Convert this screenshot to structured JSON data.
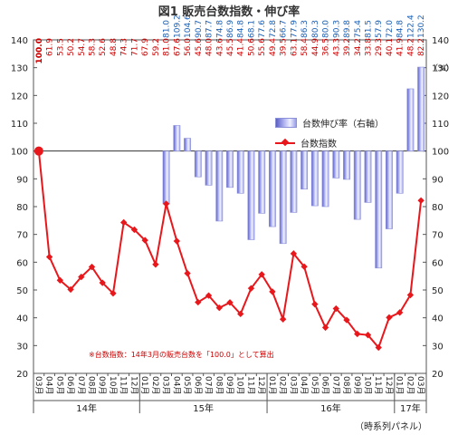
{
  "title": "図1  販売台数指数・伸び率",
  "note": "※台数指数：14年3月の販売台数を「100.0」として算出",
  "pct_unit": "（%）",
  "x_note": "（時系列パネル）",
  "legend": {
    "bar_label": "台数伸び率（右軸）",
    "line_label": "台数指数"
  },
  "colors": {
    "line": "#e8171c",
    "bar": "#9a9ee8",
    "growth_neg": "#cc0000",
    "growth_pos": "#1a5fb4"
  },
  "chart_data": {
    "type": "bar+line",
    "categories": [
      "03月",
      "04月",
      "05月",
      "06月",
      "07月",
      "08月",
      "09月",
      "10月",
      "11月",
      "12月",
      "01月",
      "02月",
      "03月",
      "04月",
      "05月",
      "06月",
      "07月",
      "08月",
      "09月",
      "10月",
      "11月",
      "12月",
      "01月",
      "02月",
      "03月",
      "04月",
      "05月",
      "06月",
      "07月",
      "08月",
      "09月",
      "10月",
      "11月",
      "12月",
      "01月",
      "02月",
      "03月"
    ],
    "year_groups": [
      {
        "label": "14年",
        "start": 0,
        "end": 9
      },
      {
        "label": "15年",
        "start": 10,
        "end": 21
      },
      {
        "label": "16年",
        "start": 22,
        "end": 33
      },
      {
        "label": "17年",
        "start": 34,
        "end": 36
      }
    ],
    "series": [
      {
        "name": "台数指数",
        "type": "line",
        "axis": "left",
        "values": [
          100.0,
          61.9,
          53.5,
          50.2,
          54.7,
          58.3,
          52.6,
          48.8,
          74.3,
          71.7,
          67.9,
          59.2,
          81.0,
          67.6,
          56.0,
          45.6,
          48.0,
          43.6,
          45.5,
          41.4,
          50.6,
          55.6,
          49.4,
          39.5,
          63.1,
          58.4,
          44.9,
          36.5,
          43.3,
          39.2,
          34.2,
          33.8,
          29.3,
          40.1,
          41.9,
          48.2,
          82.2
        ]
      },
      {
        "name": "台数伸び率（右軸）",
        "type": "bar",
        "axis": "right",
        "values": [
          null,
          null,
          null,
          null,
          null,
          null,
          null,
          null,
          null,
          null,
          null,
          null,
          81.0,
          109.2,
          104.6,
          90.7,
          87.7,
          74.8,
          86.9,
          84.8,
          68.1,
          77.6,
          72.8,
          66.7,
          77.9,
          86.3,
          80.3,
          80.0,
          90.3,
          89.8,
          75.4,
          81.5,
          57.9,
          72.0,
          84.8,
          122.4,
          130.2
        ]
      }
    ],
    "growth_labels": [
      "",
      "",
      "",
      "",
      "",
      "",
      "",
      "",
      "",
      "",
      "",
      "",
      "81.0",
      "109.2",
      "104.6",
      "90.7",
      "87.7",
      "74.8",
      "86.9",
      "84.8",
      "68.1",
      "77.6",
      "72.8",
      "66.7",
      "77.9",
      "86.3",
      "80.3",
      "80.0",
      "90.3",
      "89.8",
      "75.4",
      "81.5",
      "57.9",
      "72.0",
      "84.8",
      "122.4",
      "130.2"
    ],
    "index_labels": [
      "100.0",
      "61.9",
      "53.5",
      "50.2",
      "54.7",
      "58.3",
      "52.6",
      "48.8",
      "74.3",
      "71.7",
      "67.9",
      "59.2",
      "81.0",
      "67.6",
      "56.0",
      "45.6",
      "48.0",
      "43.6",
      "45.5",
      "41.4",
      "50.6",
      "55.6",
      "49.4",
      "39.5",
      "63.1",
      "58.4",
      "44.9",
      "36.5",
      "43.3",
      "39.2",
      "34.2",
      "33.8",
      "29.3",
      "40.1",
      "41.9",
      "48.2",
      "82.2"
    ],
    "y_left": {
      "min": 20,
      "max": 140,
      "ticks": [
        20,
        30,
        40,
        50,
        60,
        70,
        80,
        90,
        100,
        110,
        120,
        130,
        140
      ]
    },
    "y_right": {
      "min": 20,
      "max": 140,
      "ticks": [
        20,
        30,
        40,
        50,
        60,
        70,
        80,
        90,
        100,
        110,
        120,
        130,
        140
      ]
    },
    "bar_baseline": 100,
    "grid": false,
    "legend_position": "upper-right inside plot"
  }
}
